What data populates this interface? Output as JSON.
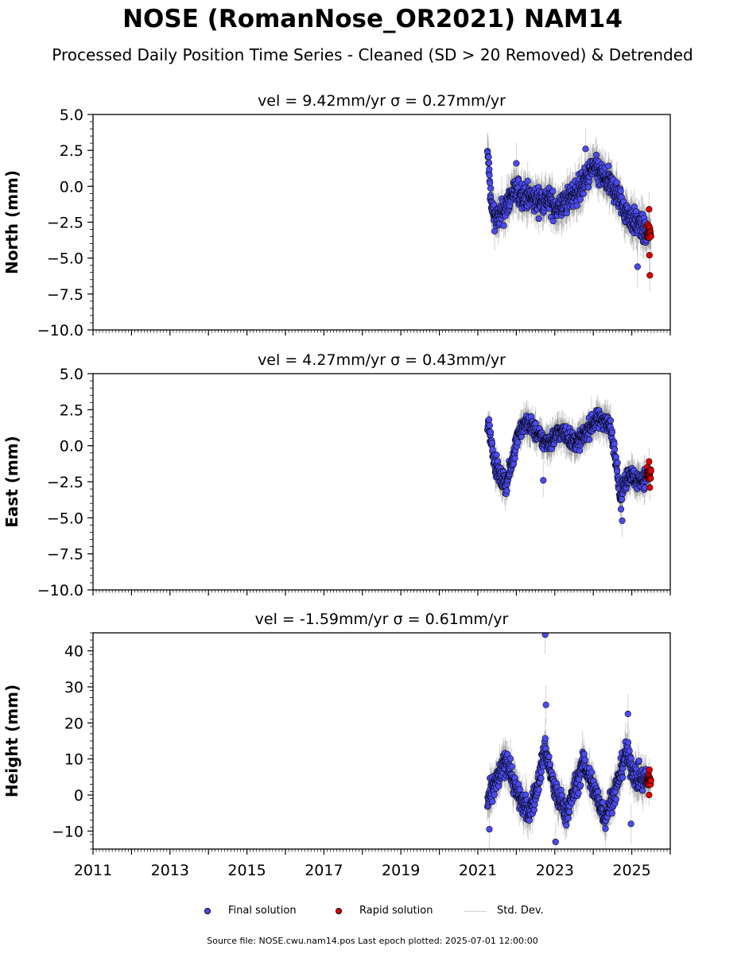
{
  "title": "NOSE (RomanNose_OR2021) NAM14",
  "subtitle": "Processed Daily Position Time Series - Cleaned (SD > 20 Removed) & Detrended",
  "colors": {
    "final": "#4b4bf0",
    "rapid": "#e00000",
    "stddev": "#808080"
  },
  "legend": {
    "final_label": "Final solution",
    "rapid_label": "Rapid solution",
    "std_label": "Std. Dev."
  },
  "footer": "Source file: NOSE.cwu.nam14.pos  Last epoch plotted: 2025-07-01 12:00:00",
  "chart_data": [
    {
      "type": "scatter",
      "title": "vel = 9.42mm/yr   σ = 0.27mm/yr",
      "ylabel": "North (mm)",
      "xlim": [
        2011.0,
        2026.0
      ],
      "ylim": [
        -10,
        5
      ],
      "yticks": [
        5.0,
        2.5,
        0.0,
        -2.5,
        -5.0,
        -7.5,
        -10.0
      ],
      "ytick_labels": [
        "5.0",
        "2.5",
        "0.0",
        "−2.5",
        "−5.0",
        "−7.5",
        "−10.0"
      ],
      "anchors": [
        [
          2021.27,
          2.0
        ],
        [
          2021.35,
          -1.5
        ],
        [
          2021.5,
          -2.3
        ],
        [
          2021.7,
          -1.6
        ],
        [
          2021.9,
          -0.4
        ],
        [
          2022.2,
          -0.6
        ],
        [
          2022.5,
          -1.0
        ],
        [
          2022.8,
          -0.9
        ],
        [
          2023.1,
          -1.6
        ],
        [
          2023.4,
          -0.8
        ],
        [
          2023.7,
          0.0
        ],
        [
          2024.0,
          1.3
        ],
        [
          2024.3,
          0.5
        ],
        [
          2024.6,
          -0.4
        ],
        [
          2024.8,
          -1.6
        ],
        [
          2025.0,
          -2.3
        ],
        [
          2025.3,
          -3.0
        ],
        [
          2025.38,
          -3.3
        ]
      ],
      "series": [
        {
          "name": "Final solution",
          "x_range": [
            2021.25,
            2025.38
          ],
          "noise": 1.0,
          "sd": 1.1,
          "outliers": [
            [
              2022.0,
              1.6
            ],
            [
              2023.8,
              2.6
            ],
            [
              2025.15,
              -5.6
            ]
          ]
        },
        {
          "name": "Rapid solution",
          "x_range": [
            2025.39,
            2025.5
          ],
          "noise": 0.9,
          "sd": 0.9,
          "outliers": [
            [
              2025.45,
              -1.6
            ],
            [
              2025.46,
              -4.8
            ],
            [
              2025.47,
              -6.2
            ]
          ]
        }
      ]
    },
    {
      "type": "scatter",
      "title": "vel = 4.27mm/yr   σ = 0.43mm/yr",
      "ylabel": "East (mm)",
      "xlim": [
        2011.0,
        2026.0
      ],
      "ylim": [
        -10,
        5
      ],
      "yticks": [
        5.0,
        2.5,
        0.0,
        -2.5,
        -5.0,
        -7.5,
        -10.0
      ],
      "ytick_labels": [
        "5.0",
        "2.5",
        "0.0",
        "−2.5",
        "−5.0",
        "−7.5",
        "−10.0"
      ],
      "anchors": [
        [
          2021.27,
          1.5
        ],
        [
          2021.35,
          0.3
        ],
        [
          2021.45,
          -1.3
        ],
        [
          2021.6,
          -2.3
        ],
        [
          2021.75,
          -2.6
        ],
        [
          2021.9,
          -1.0
        ],
        [
          2022.05,
          1.0
        ],
        [
          2022.3,
          1.6
        ],
        [
          2022.5,
          1.0
        ],
        [
          2022.7,
          0.3
        ],
        [
          2022.9,
          0.3
        ],
        [
          2023.1,
          1.0
        ],
        [
          2023.3,
          0.8
        ],
        [
          2023.5,
          0.2
        ],
        [
          2023.7,
          0.5
        ],
        [
          2023.9,
          1.3
        ],
        [
          2024.1,
          1.8
        ],
        [
          2024.3,
          1.8
        ],
        [
          2024.45,
          1.2
        ],
        [
          2024.6,
          -1.0
        ],
        [
          2024.7,
          -3.8
        ],
        [
          2024.8,
          -2.6
        ],
        [
          2024.95,
          -1.9
        ],
        [
          2025.1,
          -2.4
        ],
        [
          2025.3,
          -2.3
        ],
        [
          2025.38,
          -2.2
        ]
      ],
      "series": [
        {
          "name": "Final solution",
          "x_range": [
            2021.25,
            2025.38
          ],
          "noise": 0.7,
          "sd": 0.9,
          "outliers": [
            [
              2022.7,
              -2.4
            ],
            [
              2024.75,
              -5.2
            ],
            [
              2024.72,
              -4.4
            ]
          ]
        },
        {
          "name": "Rapid solution",
          "x_range": [
            2025.39,
            2025.5
          ],
          "noise": 0.7,
          "sd": 0.7,
          "outliers": [
            [
              2025.45,
              -1.1
            ],
            [
              2025.47,
              -2.9
            ]
          ]
        }
      ]
    },
    {
      "type": "scatter",
      "title": "vel = -1.59mm/yr   σ = 0.61mm/yr",
      "ylabel": "Height (mm)",
      "xlim": [
        2011.0,
        2026.0
      ],
      "ylim": [
        -15,
        45
      ],
      "yticks": [
        40,
        30,
        20,
        10,
        0,
        -10
      ],
      "ytick_labels": [
        "40",
        "30",
        "20",
        "10",
        "0",
        "−10"
      ],
      "xticks": [
        2011,
        2013,
        2015,
        2017,
        2019,
        2021,
        2023,
        2025
      ],
      "xtick_labels": [
        "2011",
        "2013",
        "2015",
        "2017",
        "2019",
        "2021",
        "2023",
        "2025"
      ],
      "anchors": [
        [
          2021.25,
          -2.0
        ],
        [
          2021.5,
          4.0
        ],
        [
          2021.75,
          10.0
        ],
        [
          2022.0,
          1.0
        ],
        [
          2022.3,
          -5.0
        ],
        [
          2022.5,
          0.0
        ],
        [
          2022.75,
          13.0
        ],
        [
          2023.0,
          1.0
        ],
        [
          2023.3,
          -5.0
        ],
        [
          2023.5,
          1.0
        ],
        [
          2023.75,
          9.0
        ],
        [
          2024.0,
          2.0
        ],
        [
          2024.3,
          -6.0
        ],
        [
          2024.6,
          2.0
        ],
        [
          2024.85,
          12.0
        ],
        [
          2025.1,
          5.0
        ],
        [
          2025.38,
          4.0
        ]
      ],
      "series": [
        {
          "name": "Final solution",
          "x_range": [
            2021.25,
            2025.38
          ],
          "noise": 3.8,
          "sd": 4.2,
          "outliers": [
            [
              2022.75,
              44.5
            ],
            [
              2022.77,
              25.0
            ],
            [
              2024.9,
              22.5
            ],
            [
              2023.02,
              -13.0
            ],
            [
              2024.98,
              -8.0
            ],
            [
              2021.3,
              -9.5
            ]
          ]
        },
        {
          "name": "Rapid solution",
          "x_range": [
            2025.39,
            2025.5
          ],
          "noise": 2.0,
          "sd": 2.5,
          "outliers": [
            [
              2025.46,
              7.0
            ],
            [
              2025.45,
              0.0
            ]
          ]
        }
      ]
    }
  ]
}
